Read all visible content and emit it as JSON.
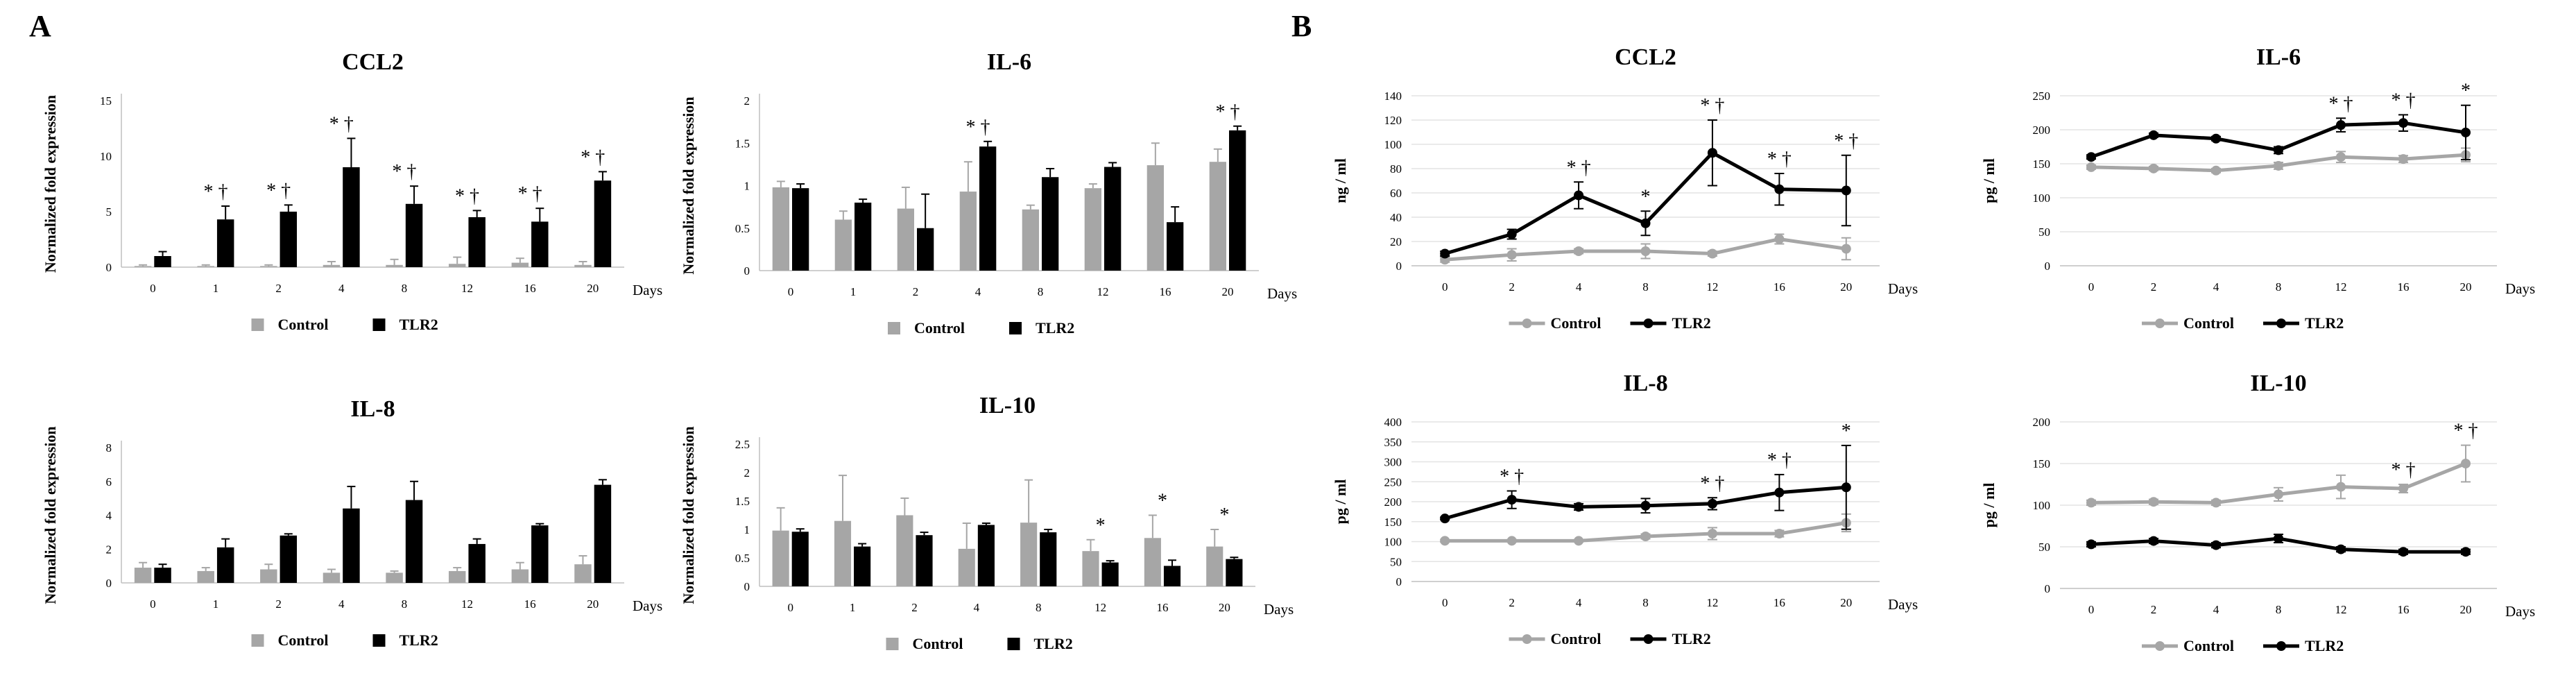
{
  "figure": {
    "panel_a_label": "A",
    "panel_b_label": "B",
    "colors": {
      "control": "#a6a6a6",
      "tlr2": "#000000",
      "axis": "#bfbfbf",
      "text": "#000000"
    }
  },
  "chart_data": [
    {
      "id": "a_ccl2",
      "type": "bar",
      "title": "CCL2",
      "ylabel": "Normalized fold expression",
      "xlabel": "Days",
      "categories": [
        "0",
        "1",
        "2",
        "4",
        "8",
        "12",
        "16",
        "20"
      ],
      "yticks": [
        "0",
        "5",
        "10",
        "15"
      ],
      "ylim": [
        0,
        15
      ],
      "grid": false,
      "legend": [
        "Control",
        "TLR2"
      ],
      "legend_position": "bottom",
      "series": [
        {
          "name": "Control",
          "values": [
            0.1,
            0.1,
            0.1,
            0.2,
            0.2,
            0.3,
            0.4,
            0.2
          ],
          "errors": [
            0.1,
            0.1,
            0.1,
            0.3,
            0.5,
            0.6,
            0.4,
            0.3
          ]
        },
        {
          "name": "TLR2",
          "values": [
            1.0,
            4.3,
            5.0,
            9.0,
            5.7,
            4.5,
            4.1,
            7.8
          ],
          "errors": [
            0.4,
            1.2,
            0.6,
            2.6,
            1.6,
            0.6,
            1.2,
            0.8
          ]
        }
      ],
      "annotations": [
        {
          "index": 1,
          "text": "* †"
        },
        {
          "index": 2,
          "text": "* †"
        },
        {
          "index": 3,
          "text": "* †"
        },
        {
          "index": 4,
          "text": "* †"
        },
        {
          "index": 5,
          "text": "* †"
        },
        {
          "index": 6,
          "text": "* †"
        },
        {
          "index": 7,
          "text": "* †"
        }
      ]
    },
    {
      "id": "a_il6",
      "type": "bar",
      "title": "IL-6",
      "ylabel": "Normalized fold expression",
      "xlabel": "Days",
      "categories": [
        "0",
        "1",
        "2",
        "4",
        "8",
        "12",
        "16",
        "20"
      ],
      "yticks": [
        "0",
        "0.5",
        "1",
        "1.5",
        "2"
      ],
      "ylim": [
        0,
        2
      ],
      "grid": false,
      "legend": [
        "Control",
        "TLR2"
      ],
      "legend_position": "bottom",
      "series": [
        {
          "name": "Control",
          "values": [
            0.98,
            0.6,
            0.73,
            0.93,
            0.72,
            0.97,
            1.24,
            1.28
          ],
          "errors": [
            0.07,
            0.1,
            0.25,
            0.35,
            0.05,
            0.05,
            0.26,
            0.15
          ]
        },
        {
          "name": "TLR2",
          "values": [
            0.97,
            0.8,
            0.5,
            1.46,
            1.1,
            1.22,
            0.57,
            1.65
          ],
          "errors": [
            0.05,
            0.04,
            0.4,
            0.06,
            0.1,
            0.05,
            0.18,
            0.05
          ]
        }
      ],
      "annotations": [
        {
          "index": 3,
          "text": "* †"
        },
        {
          "index": 7,
          "text": "* †"
        }
      ]
    },
    {
      "id": "a_il8",
      "type": "bar",
      "title": "IL-8",
      "ylabel": "Normalized fold expression",
      "xlabel": "Days",
      "categories": [
        "0",
        "1",
        "2",
        "4",
        "8",
        "12",
        "16",
        "20"
      ],
      "yticks": [
        "0",
        "2",
        "4",
        "6",
        "8"
      ],
      "ylim": [
        0,
        8
      ],
      "grid": false,
      "legend": [
        "Control",
        "TLR2"
      ],
      "legend_position": "bottom",
      "series": [
        {
          "name": "Control",
          "values": [
            0.9,
            0.7,
            0.8,
            0.6,
            0.6,
            0.7,
            0.8,
            1.1
          ],
          "errors": [
            0.3,
            0.2,
            0.3,
            0.2,
            0.1,
            0.2,
            0.4,
            0.5
          ]
        },
        {
          "name": "TLR2",
          "values": [
            0.9,
            2.1,
            2.8,
            4.4,
            4.9,
            2.3,
            3.4,
            5.8
          ],
          "errors": [
            0.2,
            0.5,
            0.1,
            1.3,
            1.1,
            0.3,
            0.1,
            0.3
          ]
        }
      ],
      "annotations": []
    },
    {
      "id": "a_il10",
      "type": "bar",
      "title": "IL-10",
      "ylabel": "Normalized fold expression",
      "xlabel": "Days",
      "categories": [
        "0",
        "1",
        "2",
        "4",
        "8",
        "12",
        "16",
        "20"
      ],
      "yticks": [
        "0",
        "0.5",
        "1",
        "1.5",
        "2",
        "2.5"
      ],
      "ylim": [
        0,
        2.5
      ],
      "grid": false,
      "legend": [
        "Control",
        "TLR2"
      ],
      "legend_position": "bottom",
      "series": [
        {
          "name": "Control",
          "values": [
            0.98,
            1.15,
            1.25,
            0.66,
            1.12,
            0.62,
            0.85,
            0.7
          ],
          "errors": [
            0.4,
            0.8,
            0.3,
            0.45,
            0.75,
            0.2,
            0.4,
            0.3
          ]
        },
        {
          "name": "TLR2",
          "values": [
            0.96,
            0.7,
            0.9,
            1.08,
            0.95,
            0.42,
            0.36,
            0.48
          ],
          "errors": [
            0.05,
            0.05,
            0.05,
            0.03,
            0.05,
            0.03,
            0.1,
            0.03
          ]
        }
      ],
      "annotations": [
        {
          "index": 5,
          "text": "*"
        },
        {
          "index": 6,
          "text": "*"
        },
        {
          "index": 7,
          "text": "*"
        }
      ]
    },
    {
      "id": "b_ccl2",
      "type": "line",
      "title": "CCL2",
      "ylabel": "ng / ml",
      "xlabel": "Days",
      "categories": [
        "0",
        "2",
        "4",
        "8",
        "12",
        "16",
        "20"
      ],
      "yticks": [
        "0",
        "20",
        "40",
        "60",
        "80",
        "100",
        "120",
        "140"
      ],
      "ylim": [
        0,
        140
      ],
      "grid": true,
      "legend": [
        "Control",
        "TLR2"
      ],
      "legend_position": "bottom",
      "series": [
        {
          "name": "Control",
          "values": [
            5,
            9,
            12,
            12,
            10,
            22,
            14
          ],
          "errors": [
            2,
            5,
            2,
            6,
            2,
            4,
            9
          ]
        },
        {
          "name": "TLR2",
          "values": [
            10,
            26,
            58,
            35,
            93,
            63,
            62
          ],
          "errors": [
            2,
            4,
            11,
            10,
            27,
            13,
            29
          ]
        }
      ],
      "annotations": [
        {
          "index": 2,
          "text": "* †"
        },
        {
          "index": 3,
          "text": "*"
        },
        {
          "index": 4,
          "text": "* †"
        },
        {
          "index": 5,
          "text": "* †"
        },
        {
          "index": 6,
          "text": "* †"
        }
      ]
    },
    {
      "id": "b_il6",
      "type": "line",
      "title": "IL-6",
      "ylabel": "pg / ml",
      "xlabel": "Days",
      "categories": [
        "0",
        "2",
        "4",
        "8",
        "12",
        "16",
        "20"
      ],
      "yticks": [
        "0",
        "50",
        "100",
        "150",
        "200",
        "250"
      ],
      "ylim": [
        0,
        250
      ],
      "grid": true,
      "legend": [
        "Control",
        "TLR2"
      ],
      "legend_position": "bottom",
      "series": [
        {
          "name": "Control",
          "values": [
            145,
            143,
            140,
            147,
            160,
            157,
            163
          ],
          "errors": [
            3,
            3,
            3,
            5,
            8,
            5,
            10
          ]
        },
        {
          "name": "TLR2",
          "values": [
            160,
            192,
            187,
            170,
            207,
            210,
            196
          ],
          "errors": [
            3,
            3,
            3,
            5,
            10,
            12,
            40
          ]
        }
      ],
      "annotations": [
        {
          "index": 4,
          "text": "* †"
        },
        {
          "index": 5,
          "text": "* †"
        },
        {
          "index": 6,
          "text": "*"
        }
      ]
    },
    {
      "id": "b_il8",
      "type": "line",
      "title": "IL-8",
      "ylabel": "pg / ml",
      "xlabel": "Days",
      "categories": [
        "0",
        "2",
        "4",
        "8",
        "12",
        "16",
        "20"
      ],
      "yticks": [
        "0",
        "50",
        "100",
        "150",
        "200",
        "250",
        "300",
        "350",
        "400"
      ],
      "ylim": [
        0,
        400
      ],
      "grid": true,
      "legend": [
        "Control",
        "TLR2"
      ],
      "legend_position": "bottom",
      "series": [
        {
          "name": "Control",
          "values": [
            102,
            102,
            102,
            113,
            120,
            120,
            147
          ],
          "errors": [
            3,
            3,
            3,
            6,
            15,
            8,
            22
          ]
        },
        {
          "name": "TLR2",
          "values": [
            158,
            205,
            187,
            190,
            195,
            223,
            236
          ],
          "errors": [
            3,
            22,
            8,
            18,
            15,
            45,
            105
          ]
        }
      ],
      "annotations": [
        {
          "index": 1,
          "text": "* †"
        },
        {
          "index": 4,
          "text": "* †"
        },
        {
          "index": 5,
          "text": "* †"
        },
        {
          "index": 6,
          "text": "*"
        }
      ]
    },
    {
      "id": "b_il10",
      "type": "line",
      "title": "IL-10",
      "ylabel": "pg / ml",
      "xlabel": "Days",
      "categories": [
        "0",
        "2",
        "4",
        "8",
        "12",
        "16",
        "20"
      ],
      "yticks": [
        "0",
        "50",
        "100",
        "150",
        "200"
      ],
      "ylim": [
        0,
        200
      ],
      "grid": true,
      "legend": [
        "Control",
        "TLR2"
      ],
      "legend_position": "bottom",
      "series": [
        {
          "name": "Control",
          "values": [
            103,
            104,
            103,
            113,
            122,
            120,
            150
          ],
          "errors": [
            3,
            3,
            3,
            8,
            14,
            5,
            22
          ]
        },
        {
          "name": "TLR2",
          "values": [
            53,
            57,
            52,
            60,
            47,
            44,
            44
          ],
          "errors": [
            3,
            3,
            3,
            5,
            3,
            3,
            3
          ]
        }
      ],
      "annotations": [
        {
          "index": 5,
          "text": "* †"
        },
        {
          "index": 6,
          "text": "* †"
        }
      ]
    }
  ]
}
